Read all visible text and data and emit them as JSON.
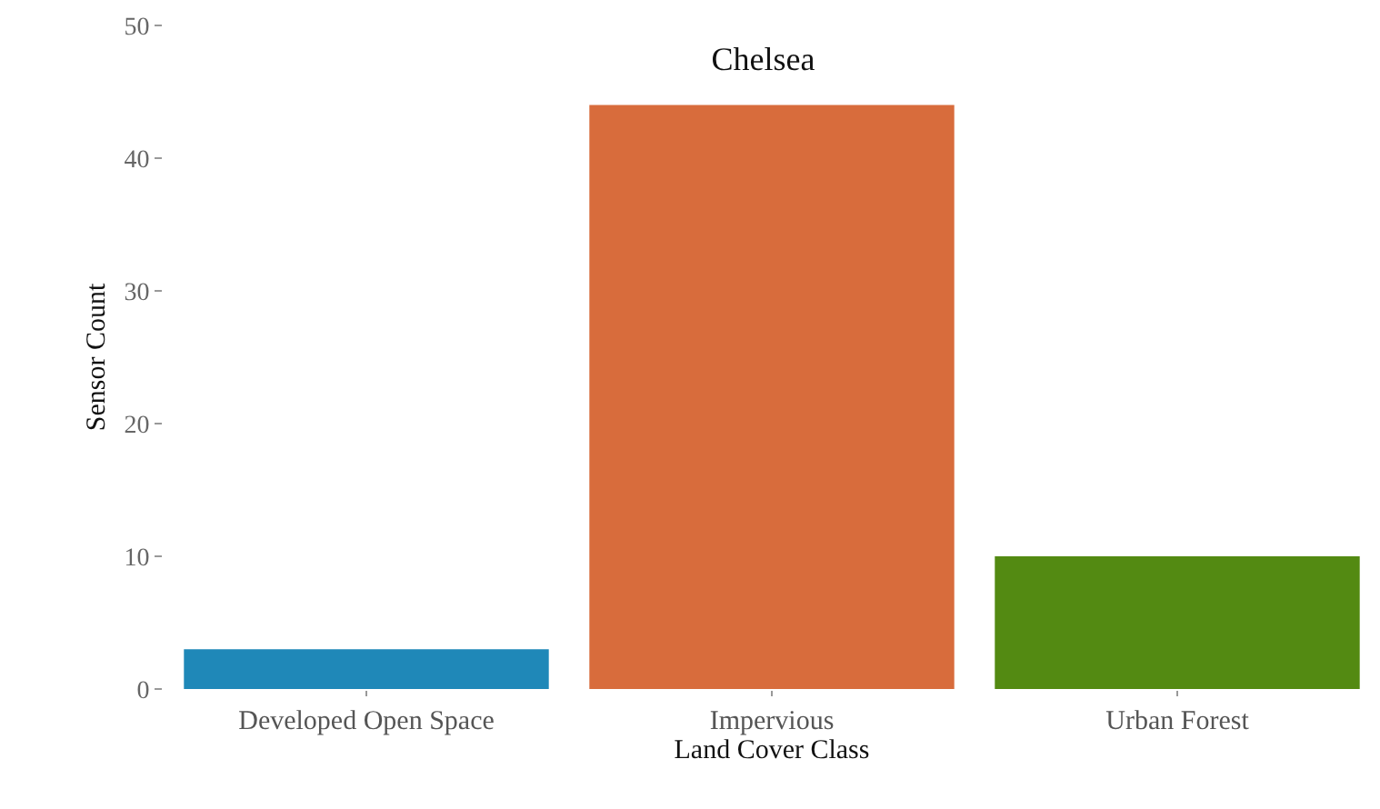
{
  "chart_data": {
    "type": "bar",
    "title": "Chelsea",
    "xlabel": "Land Cover Class",
    "ylabel": "Sensor Count",
    "categories": [
      "Developed Open Space",
      "Impervious",
      "Urban Forest"
    ],
    "values": [
      3,
      44,
      10
    ],
    "colors": [
      "#1f88b8",
      "#d86c3c",
      "#538a12"
    ],
    "ylim": [
      0,
      50
    ],
    "yticks": [
      0,
      10,
      20,
      30,
      40,
      50
    ],
    "grid": false
  }
}
